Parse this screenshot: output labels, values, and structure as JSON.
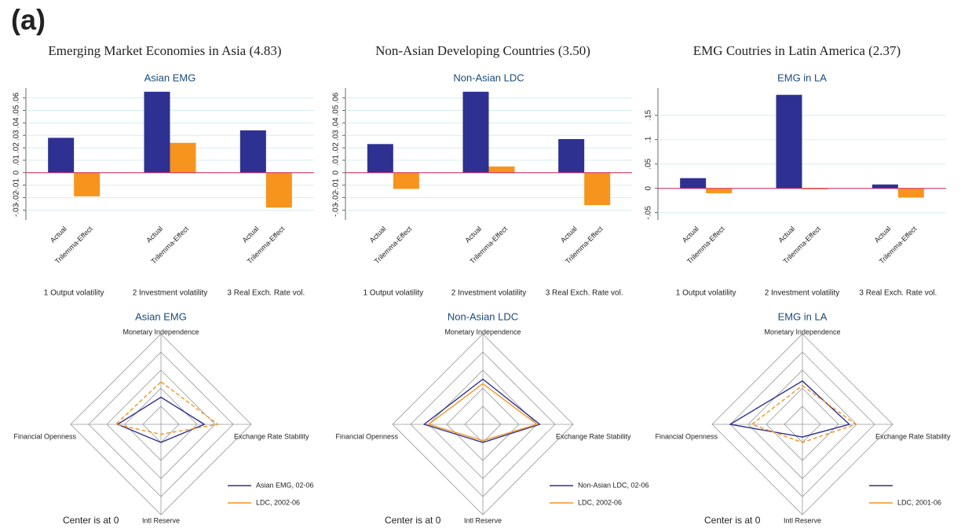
{
  "figure_label": "(a)",
  "chart_data": [
    {
      "type": "bar",
      "heading": "Emerging Market Economies in Asia (4.83)",
      "title": "Asian EMG",
      "categories": [
        "1 Output volatility",
        "2 Investment volatility",
        "3 Real Exch. Rate vol."
      ],
      "series": [
        {
          "name": "Actual",
          "color": "#2e3192",
          "values": [
            0.028,
            0.065,
            0.034
          ]
        },
        {
          "name": "Trilemma-Effect",
          "color": "#f7941d",
          "values": [
            -0.019,
            0.024,
            -0.028
          ]
        }
      ],
      "ylim": [
        -0.038,
        0.068
      ],
      "yticks": [
        {
          "value": -0.03,
          "label": "-.03"
        },
        {
          "value": -0.02,
          "label": "-.02"
        },
        {
          "value": -0.01,
          "label": "-.01"
        },
        0,
        {
          "value": 0.01,
          "label": ".01"
        },
        {
          "value": 0.02,
          "label": ".02"
        },
        {
          "value": 0.03,
          "label": ".03"
        },
        {
          "value": 0.04,
          "label": ".04"
        },
        {
          "value": 0.05,
          "label": ".05"
        },
        {
          "value": 0.06,
          "label": ".06"
        }
      ],
      "grid": true,
      "zero_line_color": "#d6245c"
    },
    {
      "type": "bar",
      "heading": "Non-Asian Developing Countries (3.50)",
      "title": "Non-Asian LDC",
      "categories": [
        "1 Output volatility",
        "2 Investment volatility",
        "3 Real Exch. Rate vol."
      ],
      "series": [
        {
          "name": "Actual",
          "color": "#2e3192",
          "values": [
            0.023,
            0.065,
            0.027
          ]
        },
        {
          "name": "Trilemma-Effect",
          "color": "#f7941d",
          "values": [
            -0.013,
            0.005,
            -0.026
          ]
        }
      ],
      "ylim": [
        -0.038,
        0.068
      ],
      "yticks": [
        {
          "value": -0.03,
          "label": "-.03"
        },
        {
          "value": -0.02,
          "label": "-.02"
        },
        {
          "value": -0.01,
          "label": "-.01"
        },
        0,
        {
          "value": 0.01,
          "label": ".01"
        },
        {
          "value": 0.02,
          "label": ".02"
        },
        {
          "value": 0.03,
          "label": ".03"
        },
        {
          "value": 0.04,
          "label": ".04"
        },
        {
          "value": 0.05,
          "label": ".05"
        },
        {
          "value": 0.06,
          "label": ".06"
        }
      ],
      "grid": true,
      "zero_line_color": "#d6245c"
    },
    {
      "type": "bar",
      "heading": "EMG Coutries in Latin America (2.37)",
      "title": "EMG in LA",
      "categories": [
        "1 Output volatility",
        "2 Investment volatility",
        "3 Real Exch. Rate vol."
      ],
      "series": [
        {
          "name": "Actual",
          "color": "#2e3192",
          "values": [
            0.021,
            0.192,
            0.008
          ]
        },
        {
          "name": "Trilemma-Effect",
          "color": "#f7941d",
          "values": [
            -0.01,
            -0.002,
            -0.019
          ]
        }
      ],
      "ylim": [
        -0.065,
        0.206
      ],
      "yticks": [
        {
          "value": -0.05,
          "label": "-.05"
        },
        0,
        {
          "value": 0.05,
          "label": ".05"
        },
        {
          "value": 0.1,
          "label": ".1"
        },
        {
          "value": 0.15,
          "label": ".15"
        }
      ],
      "grid": true,
      "zero_line_color": "#d6245c"
    },
    {
      "type": "radar",
      "title": "Asian EMG",
      "axes": [
        "Monetary Independence",
        "Exchange Rate Stability",
        "Intl Reserve",
        "Financial Openness"
      ],
      "rticks": [
        0.2,
        0.4,
        0.6,
        0.8,
        1
      ],
      "series": [
        {
          "name": "Asian EMG, 02-06",
          "color": "#2e3192",
          "style": "solid",
          "values": [
            0.3,
            0.48,
            0.2,
            0.48
          ]
        },
        {
          "name": "LDC, 2002-06",
          "color": "#f7941d",
          "style": "dashed",
          "values": [
            0.47,
            0.63,
            0.11,
            0.5
          ]
        }
      ],
      "note": "Center is at 0"
    },
    {
      "type": "radar",
      "title": "Non-Asian LDC",
      "axes": [
        "Monetary Independence",
        "Exchange Rate Stability",
        "Intl Reserve",
        "Financial Openness"
      ],
      "rticks": [
        0.2,
        0.4,
        0.6,
        0.8,
        1
      ],
      "series": [
        {
          "name": "Non-Asian LDC, 02-06",
          "color": "#2e3192",
          "style": "solid",
          "values": [
            0.5,
            0.63,
            0.2,
            0.65
          ]
        },
        {
          "name": "LDC, 2002-06",
          "color": "#f7941d",
          "style": "solid",
          "values": [
            0.45,
            0.6,
            0.18,
            0.6
          ]
        }
      ],
      "note": "Center is at 0"
    },
    {
      "type": "radar",
      "title": "EMG in LA",
      "axes": [
        "Monetary Independence",
        "Exchange Rate Stability",
        "Intl Reserve",
        "Financial Openness"
      ],
      "rticks": [
        0.2,
        0.4,
        0.6,
        0.8,
        1
      ],
      "series": [
        {
          "name": null,
          "color": "#2e3192",
          "style": "solid",
          "values": [
            0.48,
            0.52,
            0.14,
            0.8
          ]
        },
        {
          "name": "LDC, 2001-06",
          "color": "#f7941d",
          "style": "dashed",
          "values": [
            0.43,
            0.59,
            0.2,
            0.56
          ]
        }
      ],
      "note": "Center is at 0"
    }
  ]
}
